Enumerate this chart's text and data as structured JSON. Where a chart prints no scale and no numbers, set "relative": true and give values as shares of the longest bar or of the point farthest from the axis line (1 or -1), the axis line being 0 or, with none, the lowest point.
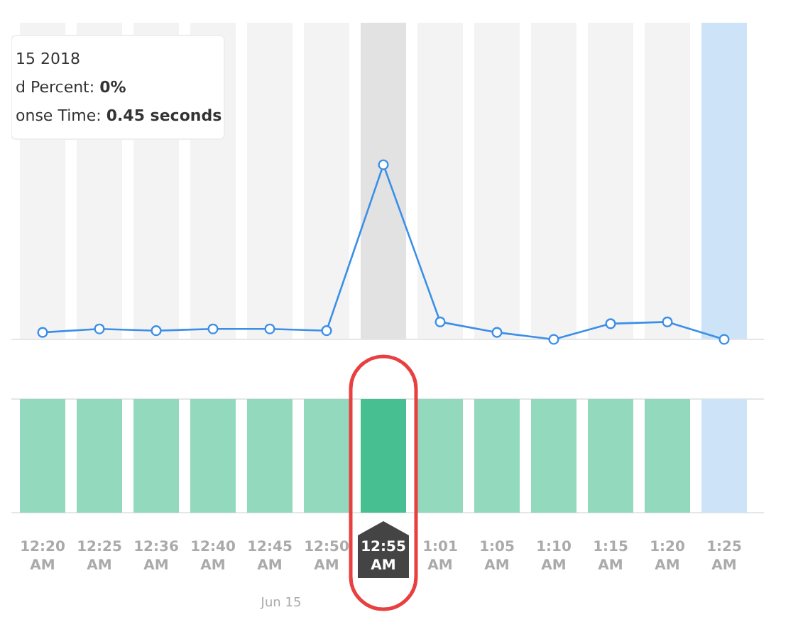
{
  "chart_data": [
    {
      "type": "line",
      "relative": true,
      "categories": [
        "12:20 AM",
        "12:25 AM",
        "12:36 AM",
        "12:40 AM",
        "12:45 AM",
        "12:50 AM",
        "12:55 AM",
        "1:01 AM",
        "1:05 AM",
        "1:10 AM",
        "1:15 AM",
        "1:20 AM",
        "1:25 AM"
      ],
      "series": [
        {
          "color": "#3b8fe8",
          "values": [
            0.04,
            0.06,
            0.05,
            0.06,
            0.06,
            0.05,
            1,
            0.1,
            0.04,
            0,
            0.09,
            0.1,
            0
          ]
        }
      ],
      "marker": "circle",
      "tick_labels": false,
      "bands": [
        {
          "axis": "x",
          "from": "12:55 AM",
          "to": "12:55 AM",
          "color": "#e2e2e2"
        },
        {
          "axis": "x",
          "from": "1:25 AM",
          "to": "1:25 AM",
          "color": "#cce3f8"
        },
        {
          "axis": "x",
          "from": "12:20 AM",
          "to": "12:20 AM",
          "color": "#f3f3f3"
        },
        {
          "axis": "x",
          "from": "12:25 AM",
          "to": "12:25 AM",
          "color": "#f3f3f3"
        },
        {
          "axis": "x",
          "from": "12:36 AM",
          "to": "12:36 AM",
          "color": "#f3f3f3"
        },
        {
          "axis": "x",
          "from": "12:40 AM",
          "to": "12:40 AM",
          "color": "#f3f3f3"
        },
        {
          "axis": "x",
          "from": "12:45 AM",
          "to": "12:45 AM",
          "color": "#f3f3f3"
        },
        {
          "axis": "x",
          "from": "12:50 AM",
          "to": "12:50 AM",
          "color": "#f3f3f3"
        },
        {
          "axis": "x",
          "from": "1:01 AM",
          "to": "1:01 AM",
          "color": "#f3f3f3"
        },
        {
          "axis": "x",
          "from": "1:05 AM",
          "to": "1:05 AM",
          "color": "#f3f3f3"
        },
        {
          "axis": "x",
          "from": "1:10 AM",
          "to": "1:10 AM",
          "color": "#f3f3f3"
        },
        {
          "axis": "x",
          "from": "1:15 AM",
          "to": "1:15 AM",
          "color": "#f3f3f3"
        },
        {
          "axis": "x",
          "from": "1:20 AM",
          "to": "1:20 AM",
          "color": "#f3f3f3"
        }
      ],
      "annotations": [
        "15 2018",
        "d Percent: 0%",
        "onse Time: 0.45 seconds"
      ]
    },
    {
      "type": "bar",
      "relative": true,
      "categories": [
        "12:20 AM",
        "12:25 AM",
        "12:36 AM",
        "12:40 AM",
        "12:45 AM",
        "12:50 AM",
        "12:55 AM",
        "1:01 AM",
        "1:05 AM",
        "1:10 AM",
        "1:15 AM",
        "1:20 AM",
        "1:25 AM"
      ],
      "values": [
        1,
        1,
        1,
        1,
        1,
        1,
        1,
        1,
        1,
        1,
        1,
        1,
        1
      ],
      "colors": [
        "#92d9bd",
        "#92d9bd",
        "#92d9bd",
        "#92d9bd",
        "#92d9bd",
        "#92d9bd",
        "#48bf91",
        "#92d9bd",
        "#92d9bd",
        "#92d9bd",
        "#92d9bd",
        "#92d9bd",
        "#cce3f8"
      ],
      "annotations": [
        "Jun 15"
      ]
    }
  ]
}
